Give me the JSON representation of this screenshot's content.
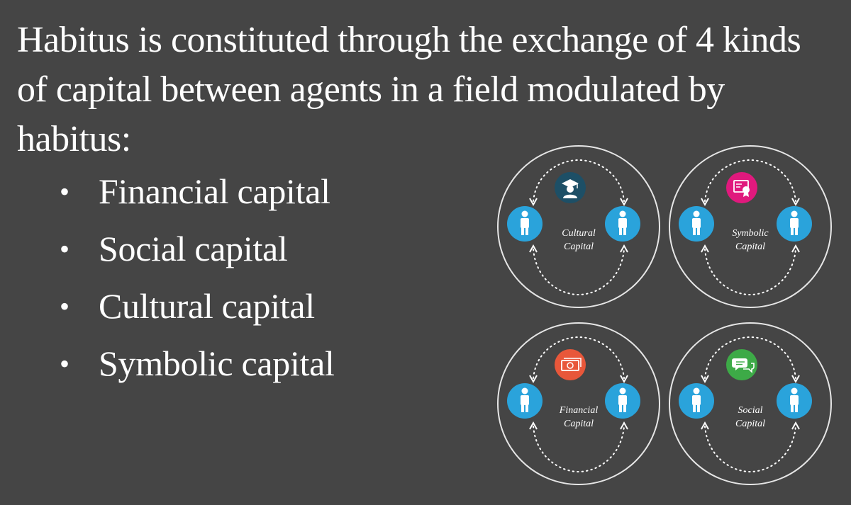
{
  "heading": "Habitus is constituted through the exchange of 4 kinds of capital between agents in a field modulated by habitus:",
  "bullets": [
    "Financial capital",
    "Social capital",
    "Cultural capital",
    "Symbolic capital"
  ],
  "diagrams": [
    {
      "label_line1": "Cultural",
      "label_line2": "Capital",
      "icon": "graduate-icon",
      "icon_color": "#1d4f66"
    },
    {
      "label_line1": "Symbolic",
      "label_line2": "Capital",
      "icon": "certificate-icon",
      "icon_color": "#e0197d"
    },
    {
      "label_line1": "Financial",
      "label_line2": "Capital",
      "icon": "money-icon",
      "icon_color": "#e8573a"
    },
    {
      "label_line1": "Social",
      "label_line2": "Capital",
      "icon": "speech-bubbles-icon",
      "icon_color": "#3daa47"
    }
  ],
  "colors": {
    "background": "#454545",
    "agent": "#2aa3db",
    "ring": "#e6e6e6"
  }
}
